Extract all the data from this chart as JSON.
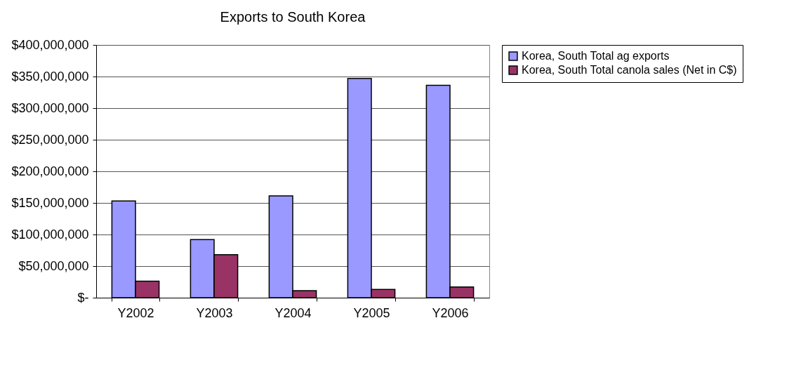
{
  "chart_data": {
    "type": "bar",
    "title": "Exports to South Korea",
    "categories": [
      "Y2002",
      "Y2003",
      "Y2004",
      "Y2005",
      "Y2006"
    ],
    "series": [
      {
        "name": "Korea, South Total ag exports",
        "color": "#9999ff",
        "values": [
          153000000,
          92000000,
          161000000,
          347000000,
          336000000
        ]
      },
      {
        "name": "Korea, South Total canola sales (Net in C$)",
        "color": "#993366",
        "values": [
          26000000,
          68000000,
          11000000,
          13000000,
          17000000
        ]
      }
    ],
    "ylim": [
      0,
      400000000
    ],
    "yticks": [
      {
        "value": 0,
        "label": "$-"
      },
      {
        "value": 50000000,
        "label": "$50,000,000"
      },
      {
        "value": 100000000,
        "label": "$100,000,000"
      },
      {
        "value": 150000000,
        "label": "$150,000,000"
      },
      {
        "value": 200000000,
        "label": "$200,000,000"
      },
      {
        "value": 250000000,
        "label": "$250,000,000"
      },
      {
        "value": 300000000,
        "label": "$300,000,000"
      },
      {
        "value": 350000000,
        "label": "$350,000,000"
      },
      {
        "value": 400000000,
        "label": "$400,000,000"
      }
    ],
    "grid": "y",
    "legend": "right"
  }
}
